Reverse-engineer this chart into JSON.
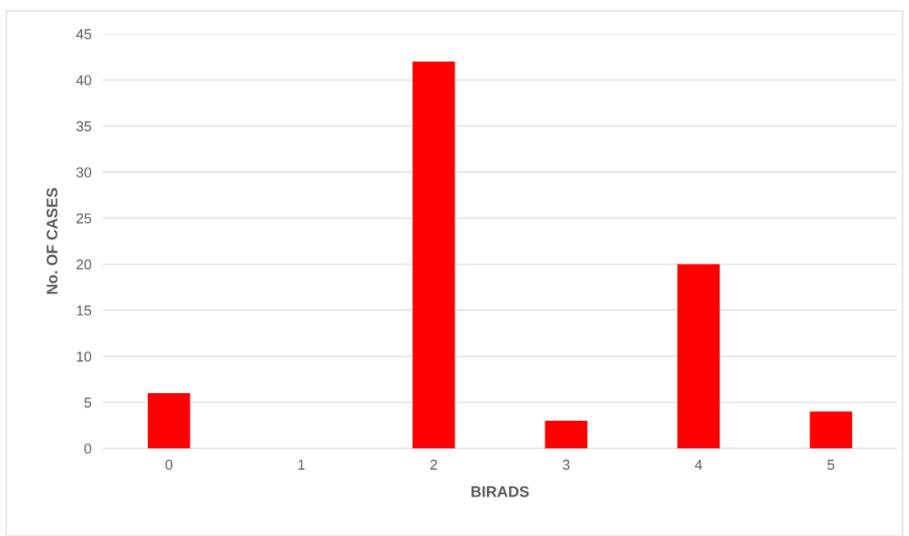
{
  "chart_data": {
    "type": "bar",
    "xlabel": "BIRADS",
    "ylabel": "No. OF CASES",
    "categories": [
      "0",
      "1",
      "2",
      "3",
      "4",
      "5"
    ],
    "values": [
      6,
      0,
      42,
      3,
      20,
      4
    ],
    "color": "#ff0000",
    "ylim": [
      0,
      45
    ],
    "yticks": [
      0,
      5,
      10,
      15,
      20,
      25,
      30,
      35,
      40,
      45
    ],
    "grid": "y"
  }
}
